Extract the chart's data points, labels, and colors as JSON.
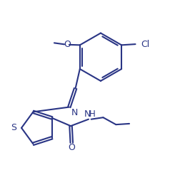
{
  "line_color": "#2a3585",
  "bg_color": "#ffffff",
  "lw": 1.5,
  "fs": 9.0,
  "figsize": [
    2.52,
    2.7
  ],
  "dpi": 100,
  "xlim": [
    0,
    10
  ],
  "ylim": [
    0,
    10.7
  ]
}
